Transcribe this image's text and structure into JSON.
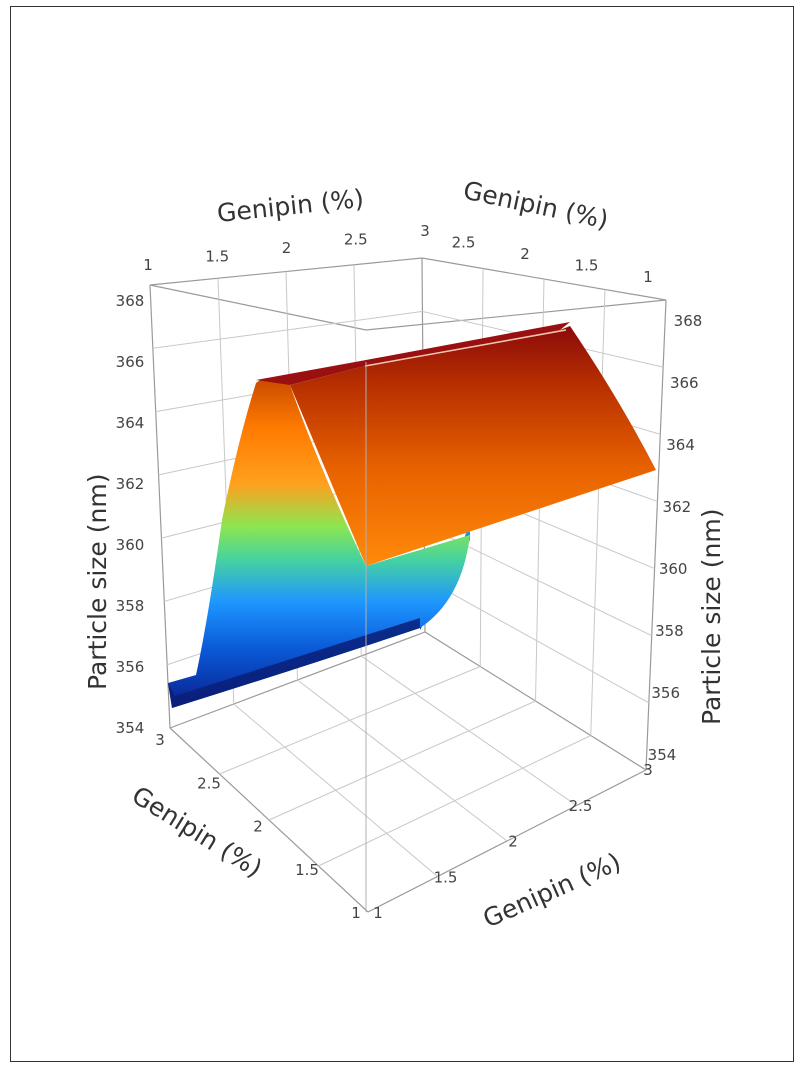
{
  "chart_data": {
    "type": "surface3d",
    "title": "",
    "axes": {
      "top_left": {
        "label": "Genipin (%)",
        "ticks": [
          "1",
          "1.5",
          "2",
          "2.5",
          "3"
        ]
      },
      "top_right": {
        "label": "Genipin (%)",
        "ticks": [
          "2.5",
          "2",
          "1.5",
          "1"
        ]
      },
      "bottom_left": {
        "label": "Genipin (%)",
        "ticks": [
          "3",
          "2.5",
          "2",
          "1.5",
          "1"
        ]
      },
      "bottom_right": {
        "label": "Genipin (%)",
        "ticks": [
          "1",
          "1.5",
          "2",
          "2.5",
          "3"
        ]
      },
      "z_left": {
        "label": "Particle size (nm)",
        "ticks": [
          "354",
          "356",
          "358",
          "360",
          "362",
          "364",
          "366",
          "368"
        ]
      },
      "z_right": {
        "label": "Particle size (nm)",
        "ticks": [
          "354",
          "356",
          "358",
          "360",
          "362",
          "364",
          "366",
          "368"
        ]
      }
    },
    "zlim": [
      354,
      368
    ],
    "colormap": [
      "#0a1e8c",
      "#0a6ee0",
      "#1ea0ff",
      "#46d2a0",
      "#8ce650",
      "#ffa01e",
      "#ff7800",
      "#d24600",
      "#8c0a0a"
    ],
    "profile": {
      "x": [
        1,
        1.25,
        1.5,
        1.75,
        2,
        2.25,
        2.5,
        2.75,
        3
      ],
      "size": [
        355.0,
        355.5,
        363.6,
        365.5,
        360.0,
        355.2,
        355.0,
        355.0,
        355.0
      ],
      "ridge_size": 365.7
    },
    "grid": true
  }
}
